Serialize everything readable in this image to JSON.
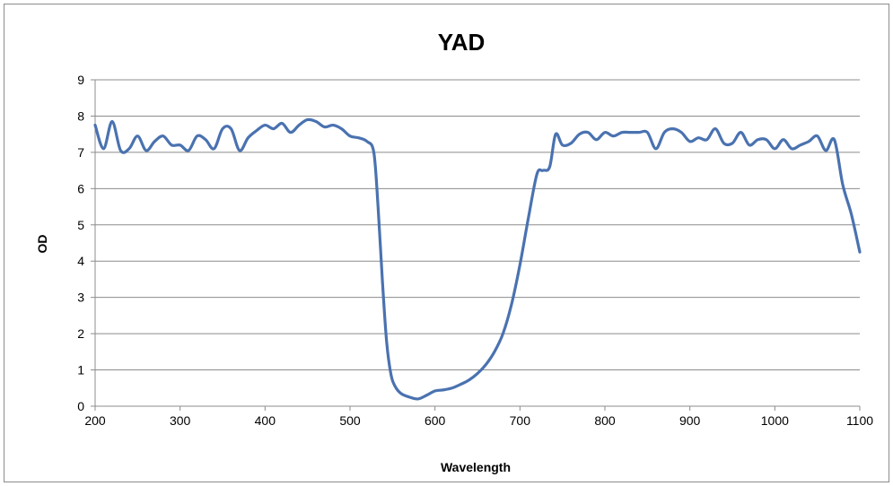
{
  "chart_data": {
    "type": "line",
    "title": "YAD",
    "xlabel": "Wavelength",
    "ylabel": "OD",
    "xlim": [
      200,
      1100
    ],
    "ylim": [
      0,
      9
    ],
    "x_ticks": [
      "200",
      "300",
      "400",
      "500",
      "600",
      "700",
      "800",
      "900",
      "1000",
      "1100"
    ],
    "y_ticks": [
      "0",
      "1",
      "2",
      "3",
      "4",
      "5",
      "6",
      "7",
      "8",
      "9"
    ],
    "grid": "horizontal",
    "legend": "none",
    "line_color": "#4a72b0",
    "series": [
      {
        "x": [
          200,
          210,
          220,
          230,
          240,
          250,
          260,
          270,
          280,
          290,
          300,
          310,
          320,
          330,
          340,
          350,
          360,
          370,
          380,
          390,
          400,
          410,
          420,
          430,
          440,
          450,
          460,
          470,
          480,
          490,
          500,
          510,
          520,
          528,
          533,
          538,
          543,
          548,
          553,
          560,
          570,
          580,
          590,
          600,
          610,
          620,
          630,
          640,
          650,
          660,
          670,
          680,
          690,
          700,
          710,
          720,
          727,
          735,
          742,
          750,
          760,
          770,
          780,
          790,
          800,
          810,
          820,
          830,
          840,
          850,
          860,
          870,
          880,
          890,
          900,
          910,
          920,
          930,
          940,
          950,
          960,
          970,
          980,
          990,
          1000,
          1010,
          1020,
          1030,
          1040,
          1050,
          1060,
          1070,
          1080,
          1090,
          1100
        ],
        "y": [
          7.75,
          7.1,
          7.85,
          7.05,
          7.1,
          7.45,
          7.05,
          7.3,
          7.45,
          7.2,
          7.2,
          7.05,
          7.45,
          7.35,
          7.1,
          7.65,
          7.65,
          7.05,
          7.4,
          7.6,
          7.75,
          7.65,
          7.8,
          7.55,
          7.75,
          7.9,
          7.85,
          7.7,
          7.75,
          7.65,
          7.45,
          7.4,
          7.3,
          7.0,
          5.5,
          3.5,
          1.8,
          0.9,
          0.55,
          0.35,
          0.25,
          0.2,
          0.3,
          0.42,
          0.45,
          0.5,
          0.6,
          0.72,
          0.9,
          1.15,
          1.5,
          2.0,
          2.8,
          3.9,
          5.2,
          6.4,
          6.5,
          6.6,
          7.5,
          7.2,
          7.25,
          7.5,
          7.55,
          7.35,
          7.55,
          7.45,
          7.55,
          7.55,
          7.55,
          7.55,
          7.1,
          7.55,
          7.65,
          7.55,
          7.3,
          7.4,
          7.35,
          7.65,
          7.25,
          7.25,
          7.55,
          7.2,
          7.35,
          7.35,
          7.1,
          7.35,
          7.1,
          7.2,
          7.3,
          7.45,
          7.05,
          7.35,
          6.1,
          5.3,
          4.25
        ]
      }
    ]
  }
}
